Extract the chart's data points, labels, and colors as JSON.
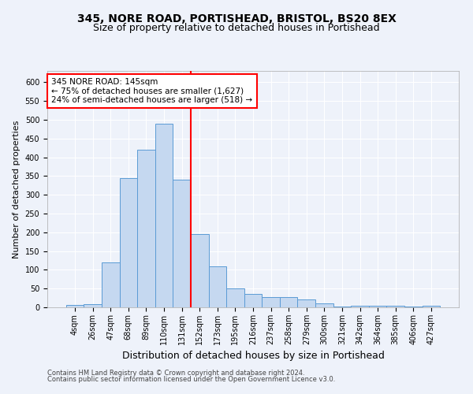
{
  "title": "345, NORE ROAD, PORTISHEAD, BRISTOL, BS20 8EX",
  "subtitle": "Size of property relative to detached houses in Portishead",
  "xlabel": "Distribution of detached houses by size in Portishead",
  "ylabel": "Number of detached properties",
  "bin_labels": [
    "4sqm",
    "26sqm",
    "47sqm",
    "68sqm",
    "89sqm",
    "110sqm",
    "131sqm",
    "152sqm",
    "173sqm",
    "195sqm",
    "216sqm",
    "237sqm",
    "258sqm",
    "279sqm",
    "300sqm",
    "321sqm",
    "342sqm",
    "364sqm",
    "385sqm",
    "406sqm",
    "427sqm"
  ],
  "bar_heights": [
    6,
    8,
    120,
    345,
    420,
    490,
    340,
    195,
    110,
    50,
    35,
    27,
    27,
    20,
    10,
    3,
    5,
    4,
    4,
    3,
    5
  ],
  "bar_color": "#c5d8f0",
  "bar_edge_color": "#5b9bd5",
  "vline_color": "red",
  "annotation_text": "345 NORE ROAD: 145sqm\n← 75% of detached houses are smaller (1,627)\n24% of semi-detached houses are larger (518) →",
  "annotation_box_color": "white",
  "annotation_box_edge_color": "red",
  "ylim": [
    0,
    630
  ],
  "yticks": [
    0,
    50,
    100,
    150,
    200,
    250,
    300,
    350,
    400,
    450,
    500,
    550,
    600
  ],
  "footer1": "Contains HM Land Registry data © Crown copyright and database right 2024.",
  "footer2": "Contains public sector information licensed under the Open Government Licence v3.0.",
  "background_color": "#eef2fa",
  "plot_background": "#eef2fa",
  "grid_color": "white",
  "title_fontsize": 10,
  "subtitle_fontsize": 9,
  "ylabel_fontsize": 8,
  "xlabel_fontsize": 9,
  "tick_fontsize": 7,
  "annotation_fontsize": 7.5,
  "footer_fontsize": 6
}
